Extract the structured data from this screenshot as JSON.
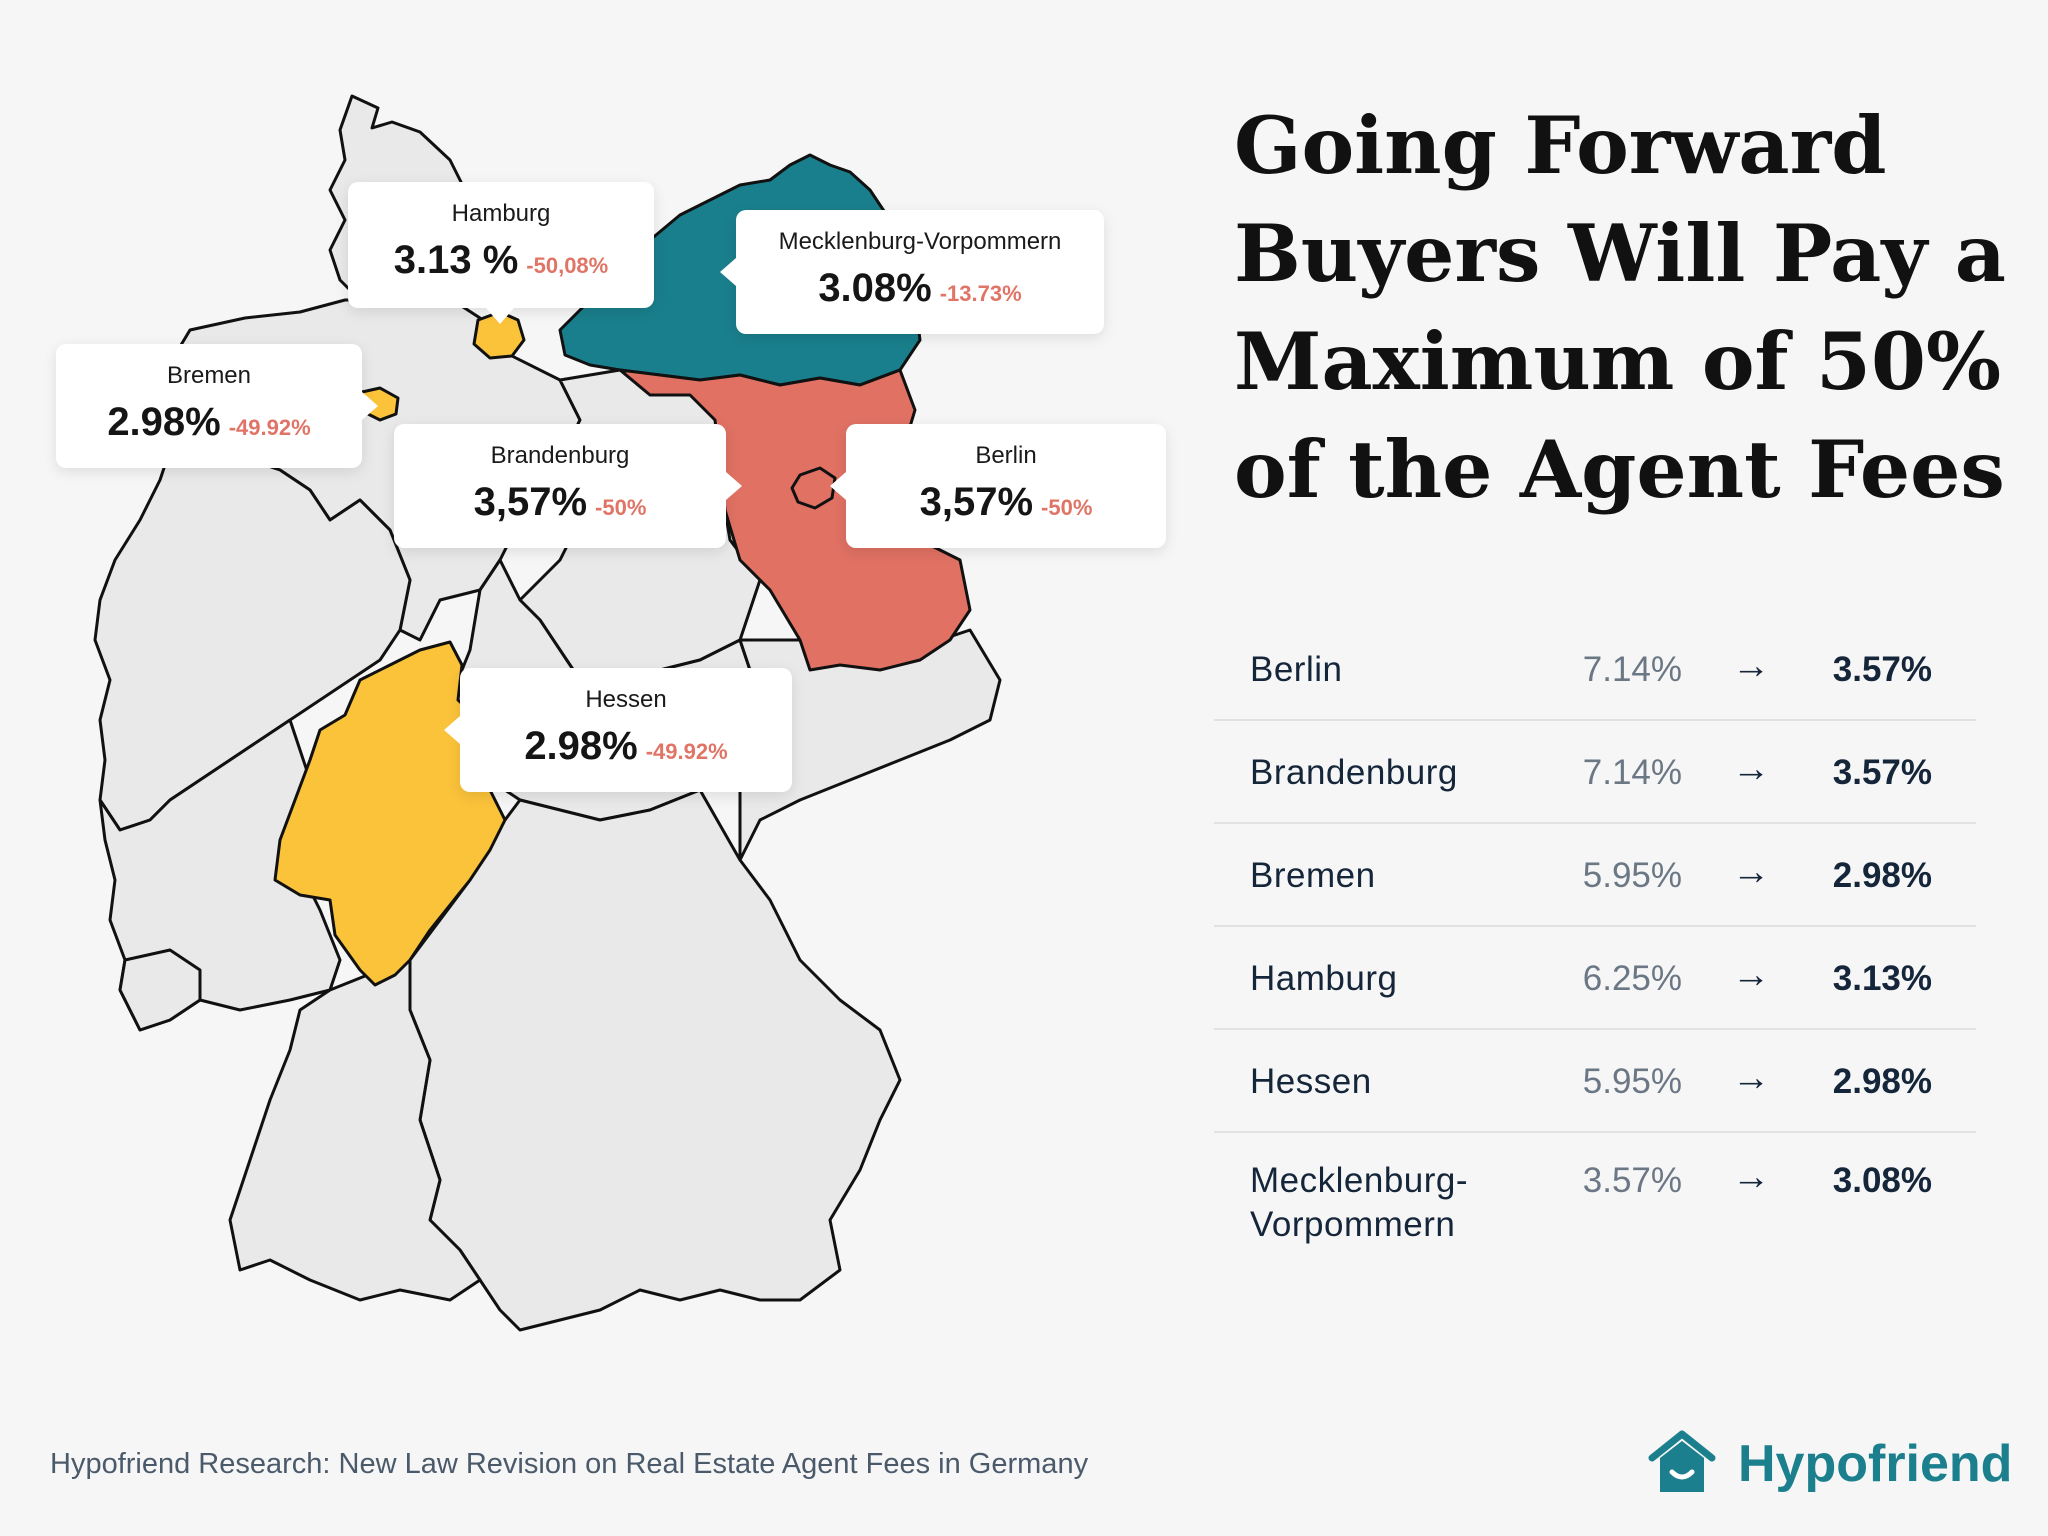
{
  "map": {
    "colors": {
      "background_states": "#e9e9e9",
      "outline": "#111111",
      "hamburg": "#fbc33a",
      "bremen": "#fbc33a",
      "hessen": "#fbc33a",
      "mecklenburg_vorpommern": "#1a7f8c",
      "brandenburg": "#e07163",
      "berlin": "#e07163"
    },
    "callouts": [
      {
        "id": "hamburg",
        "name": "Hamburg",
        "value": "3.13 %",
        "change": "-50,08%"
      },
      {
        "id": "mv",
        "name": "Mecklenburg-Vorpommern",
        "value": "3.08%",
        "change": "-13.73%"
      },
      {
        "id": "bremen",
        "name": "Bremen",
        "value": "2.98%",
        "change": "-49.92%"
      },
      {
        "id": "brandenburg",
        "name": "Brandenburg",
        "value": "3,57%",
        "change": "-50%"
      },
      {
        "id": "berlin",
        "name": "Berlin",
        "value": "3,57%",
        "change": "-50%"
      },
      {
        "id": "hessen",
        "name": "Hessen",
        "value": "2.98%",
        "change": "-49.92%"
      }
    ]
  },
  "title": "Going Forward Buyers Will Pay a Maximum of 50% of the Agent Fees",
  "table": {
    "rows": [
      {
        "state": "Berlin",
        "old": "7.14%",
        "new": "3.57%"
      },
      {
        "state": "Brandenburg",
        "old": "7.14%",
        "new": "3.57%"
      },
      {
        "state": "Bremen",
        "old": "5.95%",
        "new": "2.98%"
      },
      {
        "state": "Hamburg",
        "old": "6.25%",
        "new": "3.13%"
      },
      {
        "state": "Hessen",
        "old": "5.95%",
        "new": "2.98%"
      },
      {
        "state": "Mecklenburg-\nVorpommern",
        "old": "3.57%",
        "new": "3.08%"
      }
    ],
    "arrow": "→"
  },
  "footer": "Hypofriend Research: New Law Revision on Real Estate Agent Fees in Germany",
  "logo": {
    "text": "Hypofriend",
    "icon": "house-smile-icon",
    "color": "#1b7f8d"
  }
}
